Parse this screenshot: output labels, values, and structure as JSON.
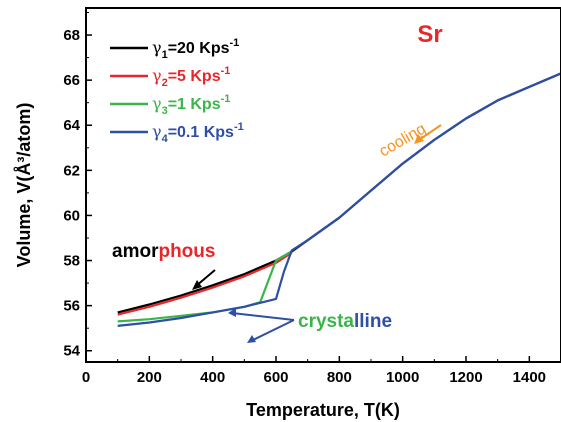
{
  "chart_data": {
    "type": "line",
    "xlabel": "Temperature, T(K)",
    "ylabel": "Volume, V(Å³/atom)",
    "xlim": [
      0,
      1500
    ],
    "ylim": [
      53.5,
      69.2
    ],
    "xticks": [
      0,
      200,
      400,
      600,
      800,
      1000,
      1200,
      1400
    ],
    "yticks": [
      54,
      56,
      58,
      60,
      62,
      64,
      66,
      68
    ],
    "grid": false,
    "legend_position": "top-left",
    "element_label": "Sr",
    "series": [
      {
        "name": "γ1=20 Kps-1",
        "legend": {
          "sym": "γ",
          "sub": "1",
          "rest": "=20 Kps",
          "sup": "-1"
        },
        "color": "#000000",
        "x": [
          100,
          200,
          300,
          400,
          500,
          600,
          650,
          700,
          800,
          900,
          1000,
          1100,
          1200,
          1300,
          1400,
          1500
        ],
        "y": [
          55.7,
          56.05,
          56.45,
          56.9,
          57.4,
          58.0,
          58.4,
          58.9,
          59.9,
          61.1,
          62.3,
          63.35,
          64.3,
          65.1,
          65.7,
          66.3
        ]
      },
      {
        "name": "γ2=5 Kps-1",
        "legend": {
          "sym": "γ",
          "sub": "2",
          "rest": "=5 Kps",
          "sup": "-1"
        },
        "color": "#e8272a",
        "x": [
          100,
          200,
          300,
          400,
          500,
          600,
          650
        ],
        "y": [
          55.6,
          55.95,
          56.35,
          56.8,
          57.3,
          57.9,
          58.35
        ]
      },
      {
        "name": "γ3=1 Kps-1",
        "legend": {
          "sym": "γ",
          "sub": "3",
          "rest": "=1 Kps",
          "sup": "-1"
        },
        "color": "#3bb54a",
        "x": [
          100,
          200,
          300,
          400,
          500,
          550,
          600,
          650
        ],
        "y": [
          55.3,
          55.4,
          55.55,
          55.7,
          55.95,
          56.15,
          58.0,
          58.4
        ]
      },
      {
        "name": "γ4=0.1 Kps-1",
        "legend": {
          "sym": "γ",
          "sub": "4",
          "rest": "=0.1 Kps",
          "sup": "-1"
        },
        "color": "#2e4fa6",
        "x": [
          100,
          200,
          300,
          400,
          500,
          600,
          625,
          650,
          700,
          800,
          900,
          1000,
          1100,
          1200,
          1300,
          1400,
          1500
        ],
        "y": [
          55.1,
          55.25,
          55.45,
          55.7,
          55.95,
          56.3,
          57.5,
          58.45,
          58.9,
          59.9,
          61.1,
          62.3,
          63.35,
          64.3,
          65.1,
          65.7,
          66.3
        ]
      }
    ],
    "annotations": {
      "amorphous": [
        {
          "text": "amor",
          "color": "#000000"
        },
        {
          "text": "phous",
          "color": "#e8272a"
        }
      ],
      "crystalline": [
        {
          "text": "crysta",
          "color": "#3bb54a"
        },
        {
          "text": "lline",
          "color": "#2e4fa6"
        }
      ],
      "cooling": {
        "text": "cooling",
        "color": "#f7931e"
      }
    }
  }
}
